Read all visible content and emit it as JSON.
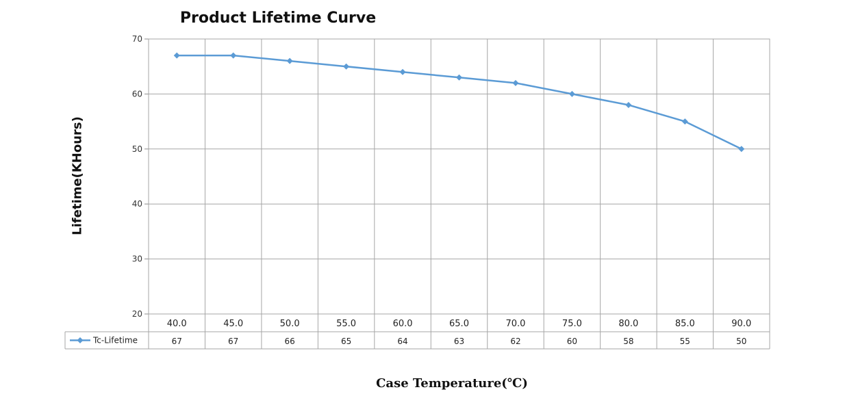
{
  "chart_data": {
    "type": "line",
    "title": "Product Lifetime Curve",
    "xlabel": "Case Temperature(℃)",
    "ylabel": "Lifetime(KHours)",
    "categories": [
      "40.0",
      "45.0",
      "50.0",
      "55.0",
      "60.0",
      "65.0",
      "70.0",
      "75.0",
      "80.0",
      "85.0",
      "90.0"
    ],
    "series": [
      {
        "name": "Tc-Lifetime",
        "values": [
          67,
          67,
          66,
          65,
          64,
          63,
          62,
          60,
          58,
          55,
          50
        ],
        "color": "#5b9bd5"
      }
    ],
    "ylim": [
      20,
      70
    ],
    "yticks": [
      20,
      30,
      40,
      50,
      60,
      70
    ],
    "grid": true,
    "legend": "data table below plot",
    "data_table": true
  }
}
